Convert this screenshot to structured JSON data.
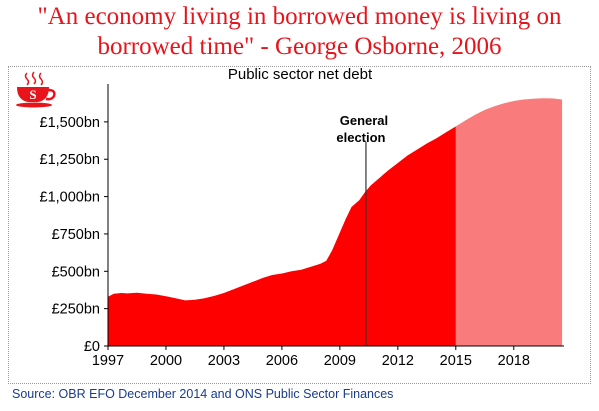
{
  "headline": {
    "line1": "\"An economy living in borrowed money is living on",
    "line2": "borrowed time\" - George Osborne, 2006"
  },
  "logo": {
    "icon": "teacup-s-logo-icon",
    "letter": "S"
  },
  "source": "Source: OBR EFO December 2014 and ONS Public Sector Finances",
  "colors": {
    "accent": "#e8141c",
    "outturn": "#ff0000",
    "forecast": "#f97b7b",
    "source_text": "#1a3b8c"
  },
  "chart_data": {
    "type": "area",
    "title": "Public sector net debt",
    "xlabel": "",
    "ylabel": "",
    "xlim": [
      1997,
      2020.6
    ],
    "ylim": [
      0,
      1700
    ],
    "x_ticks": [
      "1997",
      "2000",
      "2003",
      "2006",
      "2009",
      "2012",
      "2015",
      "2018"
    ],
    "y_ticks": [
      "£0",
      "£250bn",
      "£500bn",
      "£750bn",
      "£1,000bn",
      "£1,250bn",
      "£1,500bn"
    ],
    "grid": false,
    "series": [
      {
        "values_kind": "outturn",
        "x": [
          1997.0,
          1997.3,
          1997.7,
          1998.0,
          1998.5,
          1999.0,
          1999.5,
          2000.0,
          2000.5,
          2001.0,
          2001.5,
          2002.0,
          2002.5,
          2003.0,
          2003.5,
          2004.0,
          2004.5,
          2005.0,
          2005.5,
          2006.0,
          2006.5,
          2007.0,
          2007.5,
          2008.0,
          2008.3,
          2008.6,
          2009.0,
          2009.3,
          2009.6,
          2010.0,
          2010.3,
          2010.6,
          2011.0,
          2011.5,
          2012.0,
          2012.5,
          2013.0,
          2013.5,
          2014.0,
          2014.5,
          2015.0
        ],
        "values": [
          330,
          350,
          355,
          352,
          356,
          350,
          345,
          333,
          320,
          305,
          310,
          320,
          335,
          355,
          380,
          405,
          430,
          455,
          475,
          485,
          500,
          510,
          530,
          550,
          570,
          640,
          760,
          850,
          930,
          975,
          1030,
          1075,
          1120,
          1175,
          1225,
          1275,
          1315,
          1355,
          1390,
          1430,
          1470
        ]
      },
      {
        "values_kind": "forecast",
        "x": [
          2015.0,
          2015.5,
          2016.0,
          2016.5,
          2017.0,
          2017.5,
          2018.0,
          2018.5,
          2019.0,
          2019.5,
          2020.0,
          2020.5
        ],
        "values": [
          1470,
          1510,
          1548,
          1580,
          1605,
          1625,
          1640,
          1650,
          1655,
          1658,
          1657,
          1650
        ]
      }
    ],
    "annotations": [
      {
        "x": 2010.35,
        "label_line1": "General",
        "label_line2": "election"
      }
    ]
  }
}
